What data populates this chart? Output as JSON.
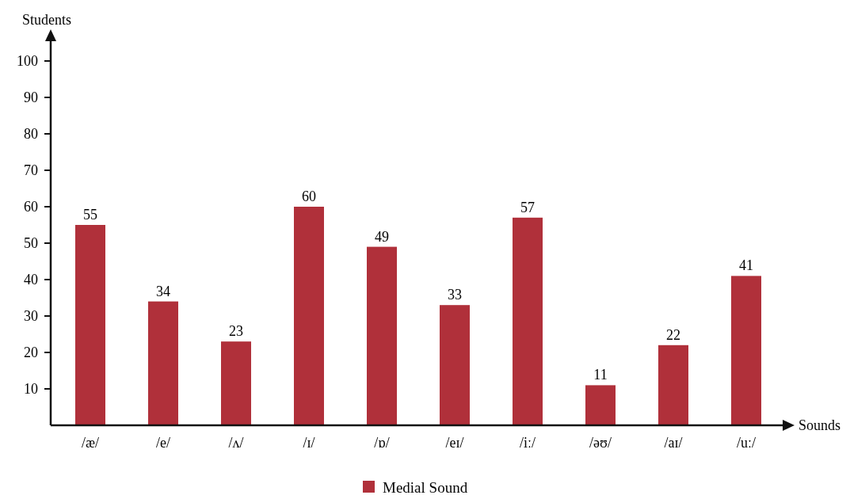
{
  "chart_data": {
    "type": "bar",
    "xlabel": "Sounds",
    "ylabel": "Students",
    "categories": [
      "/æ/",
      "/e/",
      "/ʌ/",
      "/ɪ/",
      "/ɒ/",
      "/eɪ/",
      "/iː/",
      "/əʊ/",
      "/aɪ/",
      "/uː/"
    ],
    "series": [
      {
        "name": "Medial Sound",
        "color": "#b0303a",
        "values": [
          55,
          34,
          23,
          60,
          49,
          33,
          57,
          11,
          22,
          41
        ]
      }
    ],
    "ylim": [
      0,
      100
    ],
    "yticks": [
      10,
      20,
      30,
      40,
      50,
      60,
      70,
      80,
      90,
      100
    ],
    "data_labels": true,
    "legend": "bottom",
    "grid": false
  }
}
